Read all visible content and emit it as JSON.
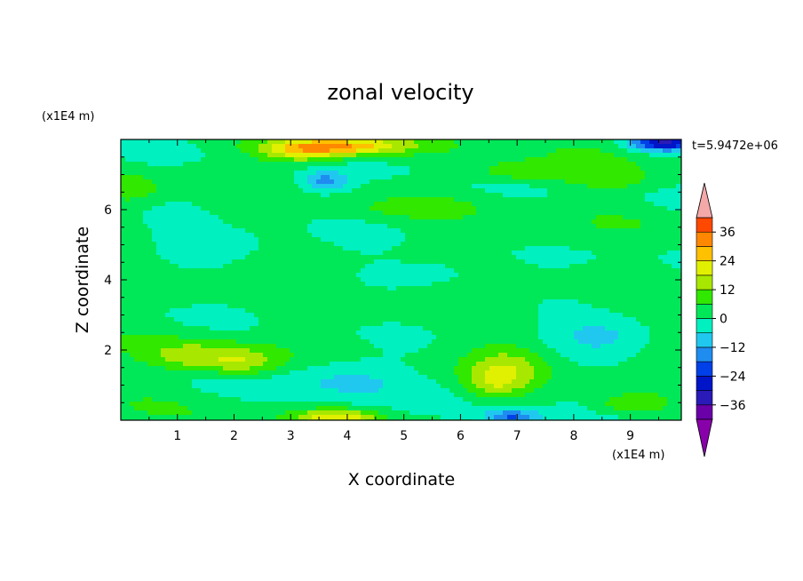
{
  "chart_data": {
    "type": "heatmap",
    "title": "zonal velocity",
    "xlabel": "X coordinate",
    "ylabel": "Z coordinate",
    "x_unit": "(x1E4 m)",
    "y_unit": "(x1E4 m)",
    "time_label": "t=5.9472e+06",
    "xlim": [
      0,
      9.9
    ],
    "ylim": [
      0,
      8
    ],
    "x_ticks": [
      1,
      2,
      3,
      4,
      5,
      6,
      7,
      8,
      9
    ],
    "y_ticks": [
      2,
      4,
      6
    ],
    "colorbar": {
      "levels": [
        -42,
        -36,
        -30,
        -24,
        -18,
        -12,
        -6,
        0,
        6,
        12,
        18,
        24,
        30,
        36,
        42
      ],
      "labels": [
        "36",
        "24",
        "12",
        "0",
        "-12",
        "-24",
        "-36"
      ],
      "label_values": [
        36,
        24,
        12,
        0,
        -12,
        -24,
        -36
      ],
      "colors": [
        "#6a00a8",
        "#2a1ab8",
        "#0015c8",
        "#0040e8",
        "#1f8cf0",
        "#20c8f0",
        "#00f0c0",
        "#00e858",
        "#30e800",
        "#a8e800",
        "#e0f000",
        "#ffc000",
        "#ff8800",
        "#ff4800",
        "#e81000"
      ],
      "extend_low_color": "#8800aa",
      "extend_high_color": "#f4a8a8"
    },
    "field_features": [
      {
        "x": 1.4,
        "z": 1.8,
        "u": 14,
        "sx": 1.0,
        "sz": 0.45
      },
      {
        "x": 2.2,
        "z": 1.6,
        "u": 10,
        "sx": 0.6,
        "sz": 0.4
      },
      {
        "x": 6.8,
        "z": 1.5,
        "u": 13,
        "sx": 0.7,
        "sz": 0.6
      },
      {
        "x": 6.6,
        "z": 1.0,
        "u": 9,
        "sx": 0.5,
        "sz": 0.4
      },
      {
        "x": 9.0,
        "z": 0.45,
        "u": 12,
        "sx": 0.6,
        "sz": 0.3
      },
      {
        "x": 3.8,
        "z": 7.8,
        "u": 26,
        "sx": 1.2,
        "sz": 0.25
      },
      {
        "x": 3.2,
        "z": 7.6,
        "u": 16,
        "sx": 0.8,
        "sz": 0.35
      },
      {
        "x": 7.1,
        "z": 7.1,
        "u": 13,
        "sx": 0.9,
        "sz": 0.3
      },
      {
        "x": 8.6,
        "z": 6.8,
        "u": 8,
        "sx": 1.1,
        "sz": 0.35
      },
      {
        "x": 0.2,
        "z": 6.6,
        "u": 10,
        "sx": 0.5,
        "sz": 0.4
      },
      {
        "x": 3.8,
        "z": 0.1,
        "u": 18,
        "sx": 0.7,
        "sz": 0.2
      },
      {
        "x": 9.6,
        "z": 7.9,
        "u": -30,
        "sx": 0.6,
        "sz": 0.25
      },
      {
        "x": 3.6,
        "z": 6.8,
        "u": -14,
        "sx": 0.4,
        "sz": 0.3
      },
      {
        "x": 6.9,
        "z": 0.1,
        "u": -20,
        "sx": 0.5,
        "sz": 0.2
      },
      {
        "x": 4.0,
        "z": 1.2,
        "u": -9,
        "sx": 1.0,
        "sz": 0.6
      },
      {
        "x": 8.5,
        "z": 2.4,
        "u": -8,
        "sx": 0.8,
        "sz": 0.5
      },
      {
        "x": 5.6,
        "z": 4.2,
        "u": -5,
        "sx": 0.9,
        "sz": 0.4
      },
      {
        "x": 2.0,
        "z": 5.0,
        "u": -4,
        "sx": 1.0,
        "sz": 0.5
      },
      {
        "x": 4.6,
        "z": 3.2,
        "u": 4,
        "sx": 1.2,
        "sz": 0.4
      },
      {
        "x": 7.4,
        "z": 5.2,
        "u": 4,
        "sx": 1.0,
        "sz": 0.4
      },
      {
        "x": 1.2,
        "z": 3.6,
        "u": 3,
        "sx": 1.0,
        "sz": 0.4
      },
      {
        "x": 5.0,
        "z": 6.0,
        "u": 5,
        "sx": 1.2,
        "sz": 0.3
      }
    ]
  }
}
